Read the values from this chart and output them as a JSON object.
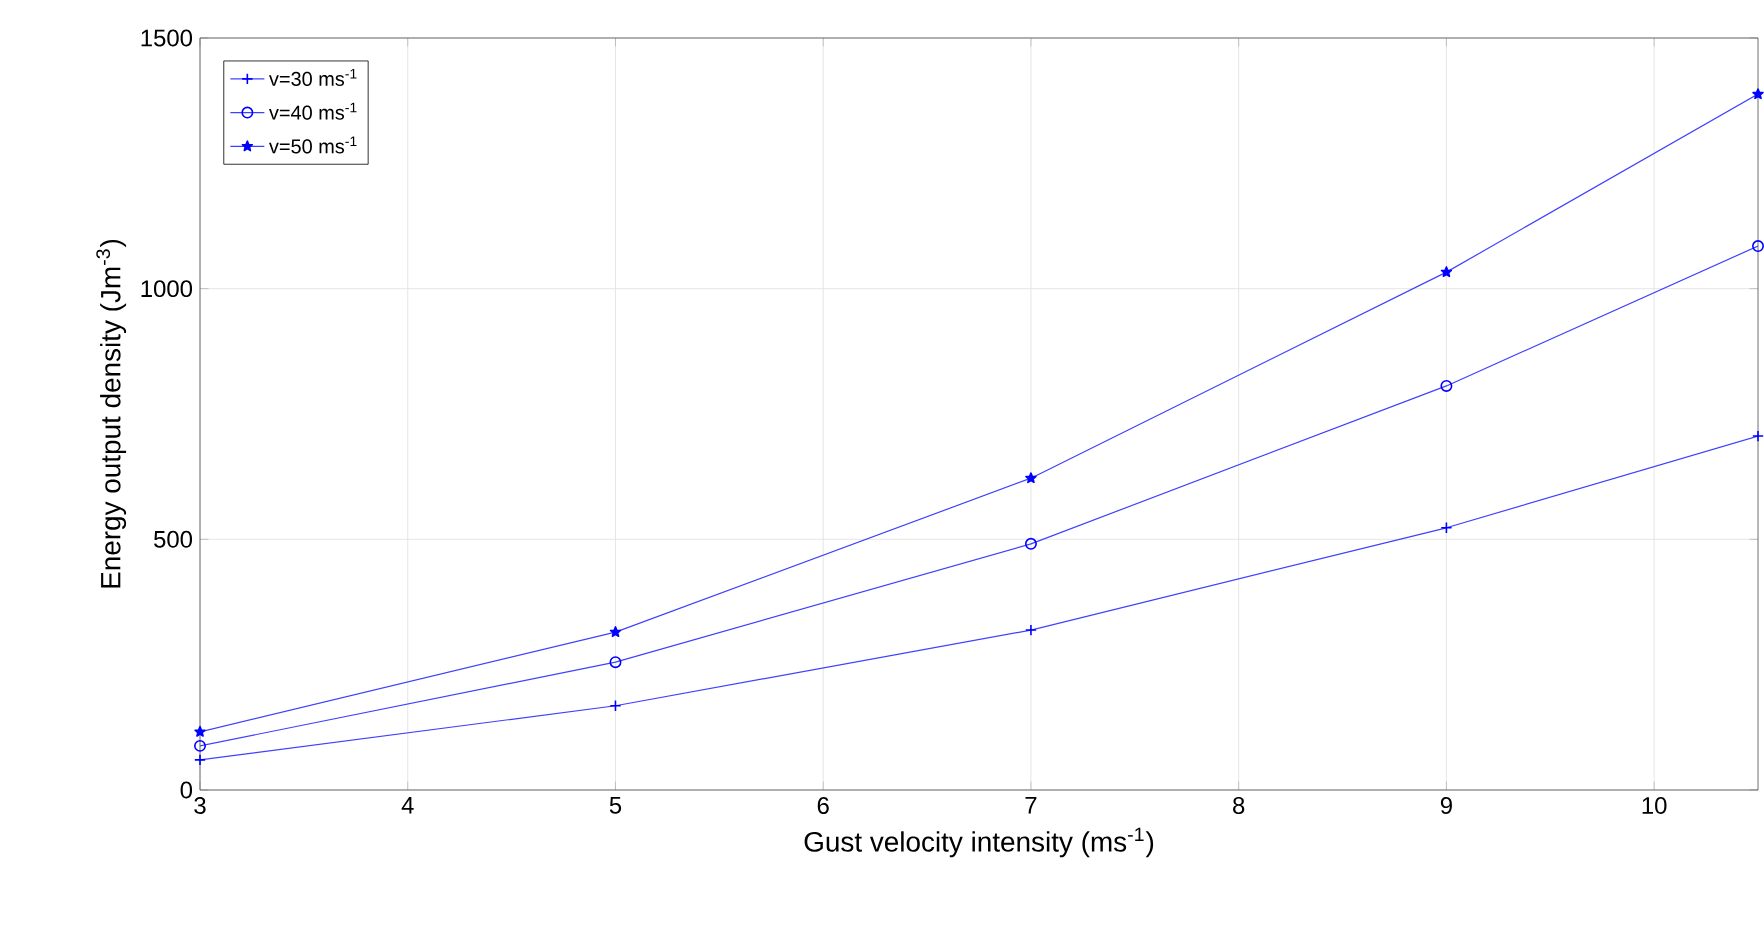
{
  "chart_data": {
    "type": "line",
    "xlabel": "Gust velocity intensity (ms$^{-1}$)",
    "ylabel": "Energy output density (Jm$^{-3}$)",
    "xlim": [
      3,
      10.5
    ],
    "xticks": [
      3,
      4,
      5,
      6,
      7,
      8,
      9,
      10
    ],
    "ylim": [
      0,
      1500
    ],
    "yticks": [
      0,
      500,
      1000,
      1500
    ],
    "grid": true,
    "legend": "top left",
    "line_style": "solid",
    "series": [
      {
        "name": "v=30 ms$^{-1}$",
        "color": "#4040ff",
        "marker": "cross",
        "x": [
          3,
          5,
          7,
          9,
          10.5
        ],
        "values": [
          60,
          168,
          319,
          523,
          706
        ]
      },
      {
        "name": "v=40 ms$^{-1}$",
        "color": "#4040ff",
        "marker": "circle",
        "x": [
          3,
          5,
          7,
          9,
          10.5
        ],
        "values": [
          88,
          255,
          491,
          806,
          1085
        ]
      },
      {
        "name": "v=50 ms$^{-1}$",
        "color": "#4040ff",
        "marker": "star",
        "x": [
          3,
          5,
          7,
          9,
          10.5
        ],
        "values": [
          116,
          315,
          622,
          1033,
          1388
        ]
      }
    ]
  }
}
